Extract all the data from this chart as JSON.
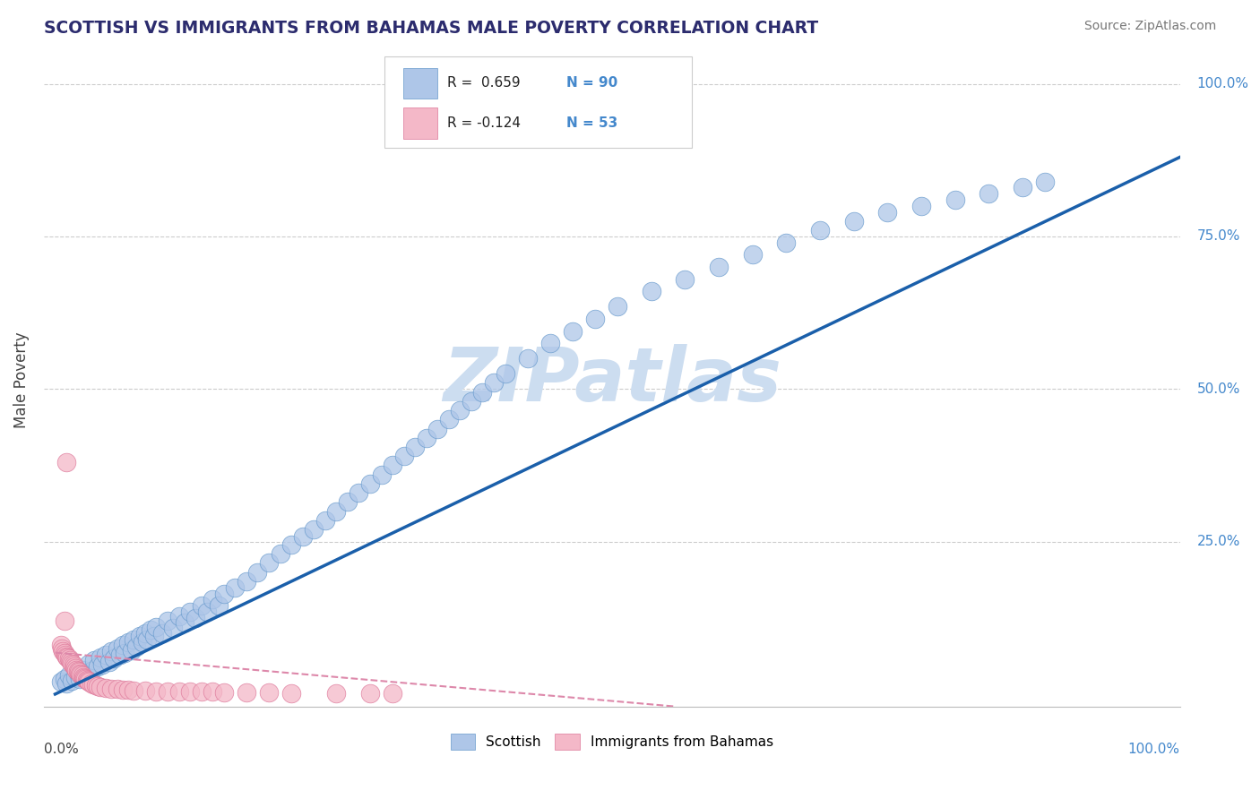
{
  "title": "SCOTTISH VS IMMIGRANTS FROM BAHAMAS MALE POVERTY CORRELATION CHART",
  "source": "Source: ZipAtlas.com",
  "ylabel": "Male Poverty",
  "title_color": "#2c2c6e",
  "source_color": "#777777",
  "scatter_blue_color": "#aec6e8",
  "scatter_blue_edge": "#6699cc",
  "scatter_pink_color": "#f4b8c8",
  "scatter_pink_edge": "#dd7799",
  "line_blue_color": "#1a5faa",
  "line_pink_color": "#dd88aa",
  "watermark_color": "#ccddf0",
  "label_color": "#4488cc",
  "background_color": "#ffffff",
  "grid_color": "#cccccc",
  "blue_x": [
    0.005,
    0.008,
    0.01,
    0.012,
    0.015,
    0.018,
    0.02,
    0.022,
    0.025,
    0.028,
    0.03,
    0.032,
    0.035,
    0.038,
    0.04,
    0.042,
    0.045,
    0.048,
    0.05,
    0.052,
    0.055,
    0.058,
    0.06,
    0.062,
    0.065,
    0.068,
    0.07,
    0.072,
    0.075,
    0.078,
    0.08,
    0.082,
    0.085,
    0.088,
    0.09,
    0.095,
    0.1,
    0.105,
    0.11,
    0.115,
    0.12,
    0.125,
    0.13,
    0.135,
    0.14,
    0.145,
    0.15,
    0.16,
    0.17,
    0.18,
    0.19,
    0.2,
    0.21,
    0.22,
    0.23,
    0.24,
    0.25,
    0.26,
    0.27,
    0.28,
    0.29,
    0.3,
    0.31,
    0.32,
    0.33,
    0.34,
    0.35,
    0.36,
    0.37,
    0.38,
    0.39,
    0.4,
    0.42,
    0.44,
    0.46,
    0.48,
    0.5,
    0.53,
    0.56,
    0.59,
    0.62,
    0.65,
    0.68,
    0.71,
    0.74,
    0.77,
    0.8,
    0.83,
    0.86,
    0.88
  ],
  "blue_y": [
    0.02,
    0.025,
    0.018,
    0.03,
    0.022,
    0.028,
    0.035,
    0.025,
    0.04,
    0.032,
    0.05,
    0.038,
    0.055,
    0.045,
    0.06,
    0.048,
    0.065,
    0.052,
    0.07,
    0.058,
    0.075,
    0.065,
    0.08,
    0.068,
    0.085,
    0.072,
    0.09,
    0.078,
    0.095,
    0.085,
    0.1,
    0.09,
    0.105,
    0.095,
    0.11,
    0.1,
    0.12,
    0.108,
    0.128,
    0.118,
    0.135,
    0.125,
    0.145,
    0.135,
    0.155,
    0.145,
    0.165,
    0.175,
    0.185,
    0.2,
    0.215,
    0.23,
    0.245,
    0.258,
    0.27,
    0.285,
    0.3,
    0.315,
    0.33,
    0.345,
    0.36,
    0.375,
    0.39,
    0.405,
    0.42,
    0.435,
    0.45,
    0.465,
    0.48,
    0.495,
    0.51,
    0.525,
    0.55,
    0.575,
    0.595,
    0.615,
    0.635,
    0.66,
    0.68,
    0.7,
    0.72,
    0.74,
    0.76,
    0.775,
    0.79,
    0.8,
    0.81,
    0.82,
    0.83,
    0.84
  ],
  "pink_x": [
    0.005,
    0.006,
    0.007,
    0.008,
    0.009,
    0.01,
    0.011,
    0.012,
    0.013,
    0.014,
    0.015,
    0.016,
    0.017,
    0.018,
    0.019,
    0.02,
    0.021,
    0.022,
    0.023,
    0.024,
    0.025,
    0.026,
    0.027,
    0.028,
    0.029,
    0.03,
    0.032,
    0.034,
    0.036,
    0.038,
    0.04,
    0.045,
    0.05,
    0.055,
    0.06,
    0.065,
    0.07,
    0.08,
    0.09,
    0.1,
    0.11,
    0.12,
    0.13,
    0.14,
    0.15,
    0.17,
    0.19,
    0.21,
    0.25,
    0.28,
    0.3,
    0.01,
    0.008
  ],
  "pink_y": [
    0.08,
    0.075,
    0.07,
    0.068,
    0.065,
    0.062,
    0.06,
    0.058,
    0.055,
    0.052,
    0.05,
    0.048,
    0.045,
    0.043,
    0.04,
    0.038,
    0.036,
    0.034,
    0.032,
    0.03,
    0.028,
    0.026,
    0.025,
    0.023,
    0.022,
    0.02,
    0.018,
    0.016,
    0.015,
    0.013,
    0.012,
    0.01,
    0.009,
    0.008,
    0.007,
    0.007,
    0.006,
    0.006,
    0.005,
    0.005,
    0.005,
    0.004,
    0.004,
    0.004,
    0.003,
    0.003,
    0.003,
    0.002,
    0.002,
    0.002,
    0.001,
    0.38,
    0.12
  ]
}
